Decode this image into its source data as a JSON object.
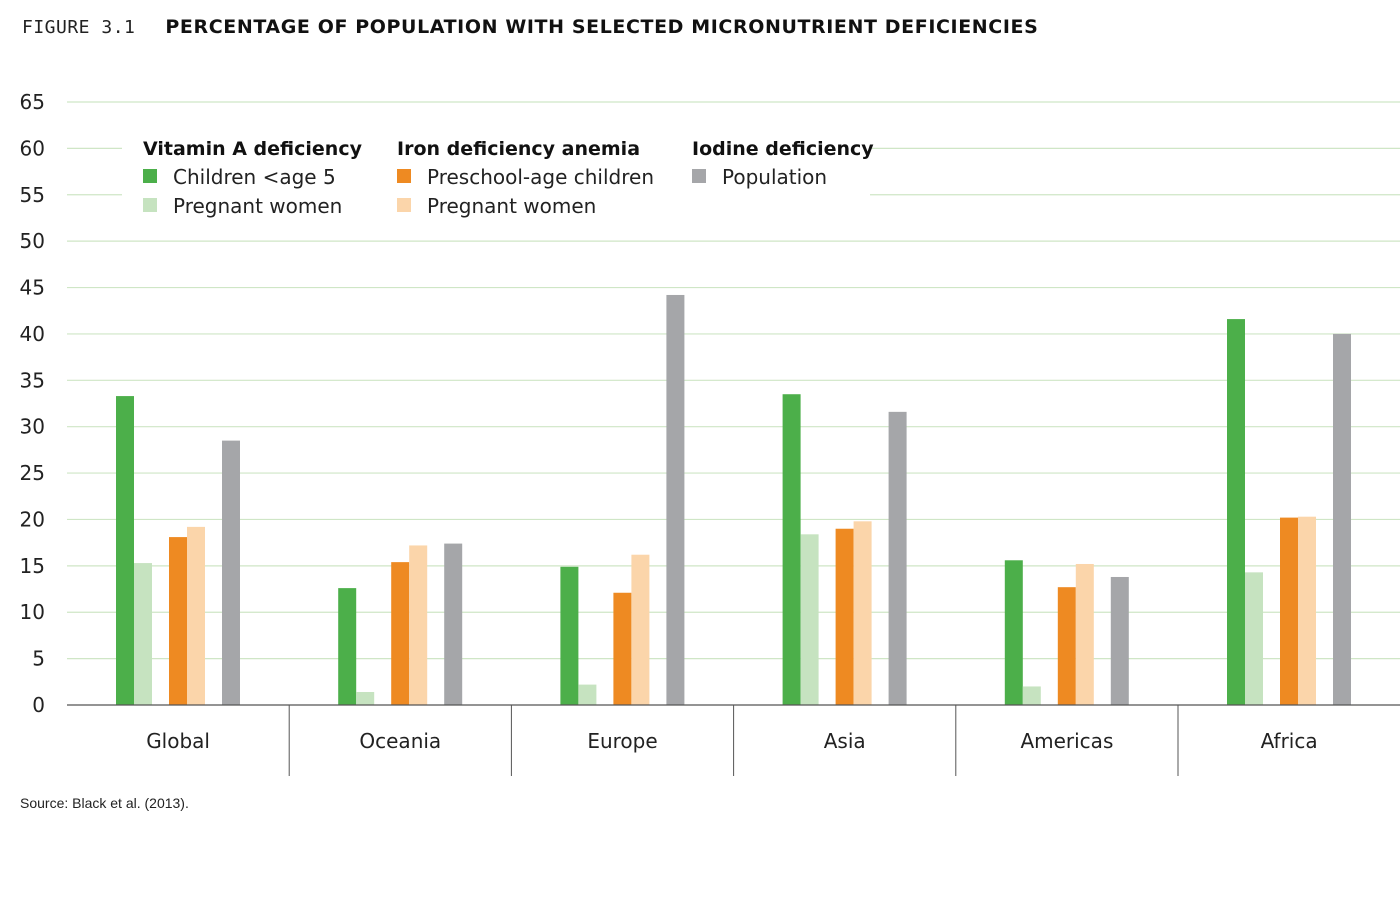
{
  "figure": {
    "label": "FIGURE 3.1",
    "title": "PERCENTAGE OF POPULATION WITH SELECTED MICRONUTRIENT DEFICIENCIES",
    "source": "Source: Black et al. (2013)."
  },
  "colors": {
    "vitA_children": "#4caf4a",
    "vitA_pregnant": "#c6e3c0",
    "iron_preschool": "#ee8a22",
    "iron_pregnant": "#fbd5aa",
    "iodine_population": "#a5a6a9",
    "gridline": "#cfe6c6",
    "axis": "#555555"
  },
  "chart_data": {
    "type": "bar",
    "categories": [
      "Global",
      "Oceania",
      "Europe",
      "Asia",
      "Americas",
      "Africa"
    ],
    "ylim": [
      0,
      65
    ],
    "yticks": [
      0,
      5,
      10,
      15,
      20,
      25,
      30,
      35,
      40,
      45,
      50,
      55,
      60,
      65
    ],
    "grid": true,
    "legend_position": "top-left",
    "legend_groups": [
      {
        "title": "Vitamin A deficiency",
        "entries": [
          "Children <age 5",
          "Pregnant women"
        ]
      },
      {
        "title": "Iron deficiency anemia",
        "entries": [
          "Preschool-age children",
          "Pregnant women"
        ]
      },
      {
        "title": "Iodine deficiency",
        "entries": [
          "Population"
        ]
      }
    ],
    "series": [
      {
        "name": "Children <age 5",
        "group": "Vitamin A deficiency",
        "color_key": "vitA_children",
        "values": [
          33.3,
          12.6,
          14.9,
          33.5,
          15.6,
          41.6
        ]
      },
      {
        "name": "Pregnant women",
        "group": "Vitamin A deficiency",
        "color_key": "vitA_pregnant",
        "values": [
          15.3,
          1.4,
          2.2,
          18.4,
          2.0,
          14.3
        ]
      },
      {
        "name": "Preschool-age children",
        "group": "Iron deficiency anemia",
        "color_key": "iron_preschool",
        "values": [
          18.1,
          15.4,
          12.1,
          19.0,
          12.7,
          20.2
        ]
      },
      {
        "name": "Pregnant women",
        "group": "Iron deficiency anemia",
        "color_key": "iron_pregnant",
        "values": [
          19.2,
          17.2,
          16.2,
          19.8,
          15.2,
          20.3
        ]
      },
      {
        "name": "Population",
        "group": "Iodine deficiency",
        "color_key": "iodine_population",
        "values": [
          28.5,
          17.4,
          44.2,
          31.6,
          13.8,
          40.0
        ]
      }
    ]
  }
}
